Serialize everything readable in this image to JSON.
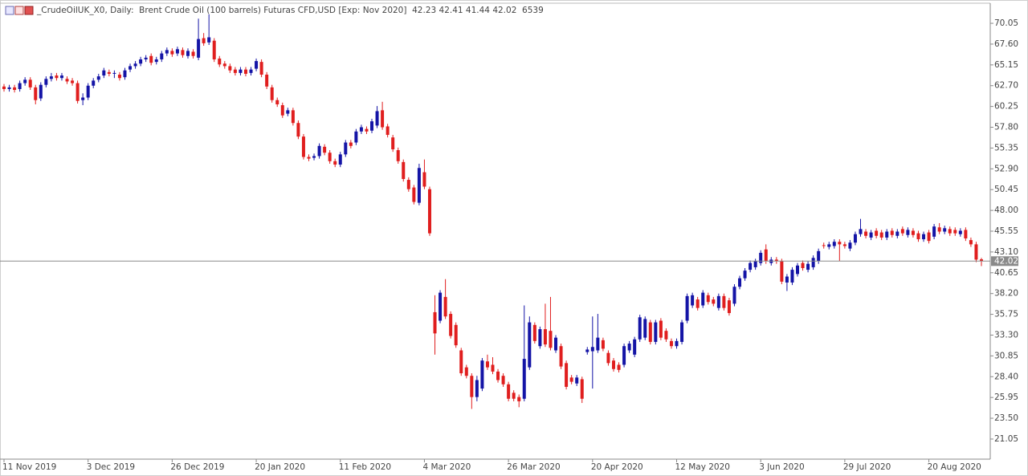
{
  "chart_data": {
    "type": "candlestick",
    "title": "_CrudeOilUK_X0, Daily:  Brent Crude Oil (100 barrels) Futuras CFD,USD [Exp: Nov 2020]  42.23 42.41 41.44 42.02  6539",
    "categories": [
      "11 Nov 2019",
      null,
      null,
      null,
      null,
      null,
      null,
      null,
      null,
      null,
      null,
      null,
      null,
      null,
      null,
      null,
      "3 Dec 2019",
      null,
      null,
      null,
      null,
      null,
      null,
      null,
      null,
      null,
      null,
      null,
      null,
      null,
      null,
      null,
      "26 Dec 2019",
      null,
      null,
      null,
      null,
      null,
      null,
      null,
      null,
      null,
      null,
      null,
      null,
      null,
      null,
      null,
      "20 Jan 2020",
      null,
      null,
      null,
      null,
      null,
      null,
      null,
      null,
      null,
      null,
      null,
      null,
      null,
      null,
      null,
      "11 Feb 2020",
      null,
      null,
      null,
      null,
      null,
      null,
      null,
      null,
      null,
      null,
      null,
      null,
      null,
      null,
      null,
      "4 Mar 2020",
      null,
      null,
      null,
      null,
      null,
      null,
      null,
      null,
      null,
      null,
      null,
      null,
      null,
      null,
      null,
      "26 Mar 2020",
      null,
      null,
      null,
      null,
      null,
      null,
      null,
      null,
      null,
      null,
      null,
      null,
      null,
      null,
      null,
      "20 Apr 2020",
      null,
      null,
      null,
      null,
      null,
      null,
      null,
      null,
      null,
      null,
      null,
      null,
      null,
      null,
      null,
      "12 May 2020",
      null,
      null,
      null,
      null,
      null,
      null,
      null,
      null,
      null,
      null,
      null,
      null,
      null,
      null,
      null,
      "3 Jun 2020",
      null,
      null,
      null,
      null,
      null,
      null,
      null,
      null,
      null,
      null,
      null,
      null,
      null,
      null,
      null,
      "29 Jul 2020",
      null,
      null,
      null,
      null,
      null,
      null,
      null,
      null,
      null,
      null,
      null,
      null,
      null,
      null,
      null,
      "20 Aug 2020",
      null,
      null,
      null,
      null,
      null,
      null,
      null,
      null,
      null,
      null
    ],
    "open": [
      62.6,
      62.3,
      62.5,
      62.3,
      63.0,
      63.4,
      62.5,
      61.2,
      62.8,
      63.5,
      63.9,
      63.6,
      63.5,
      63.3,
      63.0,
      61.0,
      61.3,
      62.7,
      63.4,
      63.9,
      64.3,
      64.1,
      64.0,
      63.7,
      64.6,
      65.0,
      65.3,
      65.8,
      66.2,
      65.5,
      65.8,
      66.5,
      66.8,
      66.5,
      66.9,
      66.2,
      66.7,
      66.0,
      68.3,
      67.8,
      68.0,
      65.9,
      65.3,
      65.0,
      64.6,
      64.2,
      64.6,
      64.2,
      64.7,
      65.5,
      64.0,
      62.5,
      61.0,
      60.4,
      59.4,
      59.8,
      58.3,
      56.7,
      54.3,
      54.2,
      54.4,
      55.5,
      54.8,
      53.8,
      53.4,
      54.6,
      56.0,
      56.0,
      57.3,
      57.6,
      57.4,
      58.0,
      59.8,
      57.9,
      56.6,
      55.1,
      53.7,
      51.6,
      50.7,
      48.9,
      52.5,
      50.5,
      36.0,
      35.0,
      37.8,
      35.8,
      34.5,
      31.5,
      29.5,
      28.5,
      26.0,
      27.0,
      30.2,
      29.8,
      29.0,
      28.5,
      27.5,
      26.5,
      26.0,
      25.8,
      29.5,
      34.5,
      32.0,
      34.0,
      33.8,
      31.5,
      32.0,
      30.0,
      28.3,
      27.6,
      28.1,
      31.3,
      31.4,
      31.5,
      32.7,
      31.2,
      30.3,
      29.8,
      29.8,
      31.5,
      31.0,
      32.8,
      33.0,
      34.8,
      32.5,
      35.0,
      33.8,
      32.6,
      32.0,
      32.5,
      35.0,
      36.8,
      37.5,
      36.8,
      38.0,
      37.5,
      36.5,
      37.9,
      37.4,
      37.0,
      39.0,
      40.0,
      41.0,
      41.3,
      41.8,
      43.4,
      41.8,
      42.2,
      42.0,
      39.5,
      39.5,
      40.5,
      41.8,
      41.0,
      41.3,
      42.0,
      43.9,
      43.7,
      43.8,
      44.3,
      44.0,
      43.5,
      44.2,
      45.2,
      45.5,
      44.8,
      45.6,
      45.4,
      44.8,
      45.6,
      45.0,
      45.8,
      45.1,
      45.6,
      45.3,
      44.6,
      45.4,
      44.9,
      46.0,
      45.5,
      45.8,
      45.7,
      45.2,
      45.7,
      44.5,
      44.0,
      42.23
    ],
    "high": [
      62.9,
      62.8,
      62.8,
      63.3,
      63.7,
      63.7,
      62.8,
      63.1,
      63.8,
      64.2,
      64.2,
      64.2,
      63.8,
      63.6,
      63.3,
      61.8,
      63.0,
      63.6,
      64.1,
      64.8,
      64.6,
      64.5,
      64.3,
      64.8,
      65.3,
      65.6,
      66.1,
      66.3,
      66.5,
      66.1,
      66.8,
      67.2,
      67.1,
      67.3,
      67.2,
      67.1,
      67.0,
      70.6,
      68.9,
      71.1,
      68.3,
      66.2,
      65.6,
      65.3,
      64.9,
      64.9,
      64.9,
      64.9,
      65.9,
      65.8,
      64.3,
      62.8,
      61.3,
      60.7,
      60.1,
      60.1,
      58.6,
      57.0,
      54.6,
      54.7,
      55.9,
      55.8,
      55.1,
      54.1,
      54.9,
      56.3,
      56.3,
      57.6,
      58.1,
      57.9,
      58.8,
      60.3,
      60.8,
      58.2,
      56.9,
      55.4,
      54.0,
      51.9,
      51.0,
      53.5,
      54.0,
      50.8,
      38.0,
      38.6,
      39.9,
      36.1,
      34.8,
      31.8,
      29.8,
      28.8,
      28.5,
      30.6,
      31.0,
      30.7,
      29.3,
      28.8,
      27.8,
      26.8,
      26.3,
      36.8,
      35.5,
      34.8,
      34.3,
      37.0,
      37.8,
      33.3,
      32.3,
      30.3,
      28.6,
      28.6,
      28.4,
      31.9,
      35.5,
      35.8,
      33.0,
      31.5,
      30.6,
      30.1,
      32.3,
      32.6,
      33.1,
      35.7,
      35.5,
      35.1,
      35.1,
      35.3,
      34.1,
      32.9,
      32.9,
      35.1,
      38.2,
      38.3,
      37.8,
      38.6,
      38.3,
      37.8,
      38.2,
      38.2,
      37.7,
      39.3,
      40.3,
      41.2,
      42.1,
      42.3,
      43.3,
      44.0,
      42.5,
      42.5,
      42.3,
      40.5,
      41.3,
      41.8,
      42.1,
      42.0,
      42.7,
      43.5,
      44.2,
      44.3,
      44.6,
      44.6,
      44.3,
      44.5,
      45.5,
      47.0,
      45.8,
      45.7,
      45.9,
      45.7,
      45.8,
      45.9,
      45.8,
      46.1,
      46.0,
      45.9,
      45.6,
      45.5,
      45.7,
      46.4,
      46.5,
      46.2,
      46.1,
      46.0,
      45.9,
      46.0,
      44.8,
      44.3,
      42.41
    ],
    "low": [
      62.0,
      62.0,
      61.9,
      62.0,
      62.7,
      62.2,
      60.5,
      60.9,
      62.5,
      63.2,
      63.3,
      63.3,
      62.9,
      62.7,
      60.6,
      60.4,
      61.0,
      62.4,
      63.1,
      63.6,
      63.8,
      63.6,
      63.3,
      63.4,
      64.3,
      64.7,
      65.0,
      65.5,
      65.1,
      65.2,
      65.5,
      66.2,
      66.1,
      66.2,
      66.0,
      65.9,
      65.9,
      65.7,
      67.4,
      67.5,
      65.5,
      64.9,
      64.7,
      64.2,
      63.9,
      63.9,
      63.8,
      63.9,
      64.4,
      63.7,
      62.3,
      60.7,
      60.2,
      58.9,
      59.1,
      58.0,
      56.4,
      54.0,
      53.8,
      53.9,
      54.1,
      54.5,
      53.5,
      53.1,
      53.1,
      54.3,
      55.3,
      55.7,
      57.0,
      57.0,
      57.1,
      57.7,
      57.5,
      56.6,
      54.9,
      53.5,
      51.4,
      50.2,
      48.7,
      48.6,
      50.5,
      45.0,
      31.0,
      34.7,
      35.2,
      32.9,
      31.8,
      28.5,
      28.2,
      24.6,
      25.5,
      26.7,
      29.2,
      28.7,
      27.7,
      27.2,
      25.5,
      25.5,
      24.8,
      25.5,
      29.2,
      32.3,
      31.7,
      31.9,
      31.5,
      31.2,
      29.3,
      26.9,
      27.5,
      27.3,
      25.3,
      31.0,
      27.0,
      31.2,
      31.4,
      29.7,
      29.0,
      28.9,
      29.5,
      31.2,
      30.7,
      32.5,
      32.7,
      32.2,
      32.2,
      32.7,
      32.5,
      31.7,
      31.7,
      32.2,
      34.7,
      36.5,
      36.2,
      36.5,
      36.9,
      36.7,
      36.2,
      36.2,
      35.6,
      36.7,
      38.7,
      39.7,
      40.7,
      41.0,
      41.5,
      41.7,
      41.5,
      41.7,
      39.3,
      38.5,
      39.2,
      40.2,
      40.9,
      40.7,
      41.0,
      41.7,
      43.5,
      43.4,
      43.5,
      42.0,
      43.5,
      43.2,
      43.9,
      44.9,
      44.7,
      44.5,
      44.7,
      44.5,
      44.5,
      44.8,
      44.7,
      45.0,
      44.8,
      44.8,
      44.3,
      44.3,
      44.1,
      44.6,
      45.2,
      45.2,
      45.0,
      45.0,
      44.9,
      44.4,
      43.7,
      41.9,
      41.44
    ],
    "close": [
      62.3,
      62.5,
      62.2,
      63.0,
      63.4,
      62.5,
      61.0,
      62.8,
      63.5,
      63.8,
      63.6,
      63.9,
      63.2,
      63.0,
      60.9,
      61.3,
      62.7,
      63.3,
      63.8,
      64.5,
      64.1,
      64.2,
      63.6,
      64.5,
      65.0,
      65.3,
      65.8,
      66.0,
      65.4,
      65.8,
      66.5,
      66.9,
      66.4,
      67.0,
      66.3,
      66.8,
      66.2,
      68.2,
      67.7,
      68.4,
      65.8,
      65.2,
      65.0,
      64.5,
      64.2,
      64.6,
      64.1,
      64.6,
      65.6,
      64.0,
      62.6,
      61.0,
      60.5,
      59.2,
      59.8,
      58.3,
      56.7,
      54.3,
      54.1,
      54.4,
      55.6,
      54.8,
      53.8,
      53.4,
      54.6,
      56.0,
      55.6,
      57.3,
      57.8,
      57.3,
      58.5,
      59.7,
      57.8,
      56.9,
      55.2,
      53.8,
      51.7,
      50.5,
      49.0,
      53.0,
      50.8,
      45.3,
      33.5,
      38.3,
      35.5,
      33.2,
      32.1,
      28.8,
      28.5,
      26.0,
      28.0,
      30.3,
      29.5,
      29.0,
      28.0,
      27.5,
      25.8,
      25.8,
      25.5,
      30.5,
      34.8,
      32.6,
      34.0,
      32.2,
      31.8,
      33.0,
      29.6,
      27.2,
      27.8,
      28.3,
      25.8,
      31.6,
      31.9,
      33.0,
      31.7,
      30.0,
      29.3,
      29.2,
      32.0,
      32.3,
      32.8,
      35.4,
      35.2,
      32.5,
      34.8,
      33.0,
      32.8,
      32.0,
      32.6,
      34.8,
      37.9,
      38.0,
      36.5,
      38.3,
      37.2,
      37.0,
      37.9,
      36.5,
      35.9,
      39.0,
      40.0,
      40.9,
      41.8,
      42.0,
      43.0,
      42.0,
      42.2,
      42.0,
      39.6,
      40.2,
      41.0,
      41.5,
      41.2,
      41.7,
      42.4,
      43.2,
      43.8,
      44.0,
      44.3,
      44.0,
      43.8,
      44.2,
      45.2,
      45.8,
      45.0,
      45.4,
      45.0,
      44.8,
      45.5,
      45.1,
      45.5,
      45.3,
      45.7,
      45.1,
      44.6,
      45.2,
      44.4,
      46.1,
      45.5,
      45.9,
      45.3,
      45.3,
      45.6,
      44.7,
      44.0,
      42.2,
      42.02
    ],
    "up_color": "#1414a6",
    "down_color": "#e01e1e",
    "ylim": [
      18.68,
      72.42
    ],
    "yticks": [
      70.05,
      {
        "value": 67.6,
        "label": "67.60"
      },
      65.15,
      {
        "value": 62.7,
        "label": "62.70"
      },
      60.25,
      {
        "value": 57.8,
        "label": "57.80"
      },
      55.35,
      {
        "value": 52.9,
        "label": "52.90"
      },
      50.45,
      {
        "value": 48,
        "label": "48.00"
      },
      45.55,
      {
        "value": 43.1,
        "label": "43.10"
      },
      40.65,
      {
        "value": 38.2,
        "label": "38.20"
      },
      35.75,
      {
        "value": 33.3,
        "label": "33.30"
      },
      30.85,
      {
        "value": 28.4,
        "label": "28.40"
      },
      25.95,
      {
        "value": 23.5,
        "label": "23.50"
      },
      21.05
    ],
    "last_price": 42.02,
    "last_price_color": "#8a8a8a"
  }
}
